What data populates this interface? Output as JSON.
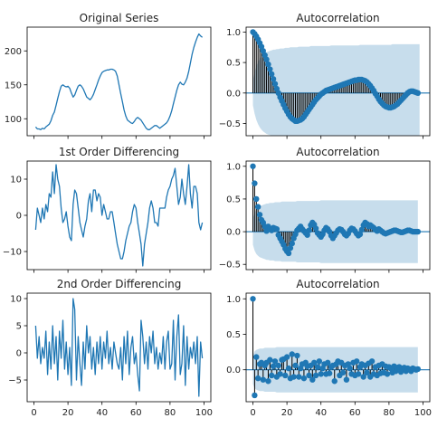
{
  "chart_data": [
    {
      "type": "line",
      "title": "Original Series",
      "xlim": [
        -4,
        104
      ],
      "ylim": [
        75,
        235
      ],
      "xticks": [
        0,
        20,
        40,
        60,
        80,
        100
      ],
      "yticks": [
        100,
        150,
        200
      ],
      "show_x_tick_labels": false,
      "color": "#1f77b4",
      "y": [
        88,
        85,
        85,
        84,
        86,
        85,
        88,
        90,
        92,
        97,
        105,
        110,
        120,
        130,
        140,
        148,
        150,
        148,
        147,
        148,
        145,
        138,
        132,
        135,
        142,
        148,
        150,
        148,
        144,
        138,
        132,
        130,
        128,
        131,
        136,
        143,
        150,
        157,
        163,
        168,
        170,
        171,
        172,
        172,
        173,
        173,
        172,
        170,
        163,
        150,
        137,
        125,
        113,
        104,
        98,
        96,
        94,
        93,
        96,
        100,
        102,
        100,
        98,
        94,
        90,
        86,
        84,
        84,
        86,
        88,
        90,
        90,
        88,
        86,
        88,
        90,
        92,
        94,
        98,
        104,
        112,
        122,
        132,
        142,
        150,
        154,
        151,
        150,
        154,
        160,
        170,
        182,
        195,
        205,
        213,
        220,
        225,
        222,
        220
      ]
    },
    {
      "type": "acf",
      "title": "Autocorrelation",
      "xlim": [
        -4,
        104
      ],
      "ylim": [
        -0.7,
        1.08
      ],
      "xticks": [
        0,
        20,
        40,
        60,
        80,
        100
      ],
      "yticks": [
        -0.5,
        0.0,
        0.5,
        1.0
      ],
      "ytick_labels": [
        "−0.5",
        "0.0",
        "0.5",
        "1.0"
      ],
      "show_x_tick_labels": false,
      "confidence_band": [
        0.2,
        0.34,
        0.44,
        0.51,
        0.56,
        0.6,
        0.63,
        0.65,
        0.67,
        0.68,
        0.69,
        0.7,
        0.71,
        0.71,
        0.72,
        0.72,
        0.73,
        0.73,
        0.73,
        0.74,
        0.74,
        0.74,
        0.75,
        0.75,
        0.75,
        0.75,
        0.75,
        0.76,
        0.76,
        0.76,
        0.76,
        0.76,
        0.76,
        0.76,
        0.77,
        0.77,
        0.77,
        0.77,
        0.77,
        0.77,
        0.77,
        0.77,
        0.77,
        0.77,
        0.77,
        0.77,
        0.78,
        0.78,
        0.78,
        0.78,
        0.78,
        0.78,
        0.78,
        0.78,
        0.78,
        0.78,
        0.78,
        0.78,
        0.78,
        0.78,
        0.78,
        0.78,
        0.78,
        0.79,
        0.79,
        0.79,
        0.79,
        0.79,
        0.79,
        0.79,
        0.79,
        0.79,
        0.79,
        0.79,
        0.79,
        0.79,
        0.79,
        0.79,
        0.79,
        0.79,
        0.79,
        0.79,
        0.8,
        0.8,
        0.8,
        0.8,
        0.8,
        0.8,
        0.8,
        0.8,
        0.8,
        0.8,
        0.8,
        0.8,
        0.8,
        0.8,
        0.8,
        0.8,
        0.8
      ],
      "values": [
        1.0,
        0.97,
        0.93,
        0.88,
        0.82,
        0.76,
        0.69,
        0.62,
        0.55,
        0.47,
        0.39,
        0.31,
        0.23,
        0.15,
        0.07,
        0.0,
        -0.07,
        -0.13,
        -0.19,
        -0.25,
        -0.3,
        -0.35,
        -0.39,
        -0.42,
        -0.44,
        -0.46,
        -0.46,
        -0.45,
        -0.44,
        -0.42,
        -0.39,
        -0.35,
        -0.31,
        -0.27,
        -0.23,
        -0.19,
        -0.15,
        -0.11,
        -0.08,
        -0.05,
        -0.02,
        0.0,
        0.02,
        0.04,
        0.05,
        0.06,
        0.07,
        0.08,
        0.09,
        0.1,
        0.11,
        0.12,
        0.13,
        0.14,
        0.15,
        0.16,
        0.17,
        0.18,
        0.19,
        0.2,
        0.21,
        0.21,
        0.22,
        0.22,
        0.22,
        0.21,
        0.2,
        0.18,
        0.15,
        0.12,
        0.08,
        0.04,
        -0.01,
        -0.05,
        -0.1,
        -0.14,
        -0.17,
        -0.2,
        -0.22,
        -0.23,
        -0.24,
        -0.24,
        -0.23,
        -0.22,
        -0.2,
        -0.18,
        -0.15,
        -0.12,
        -0.09,
        -0.06,
        -0.03,
        0.0,
        0.02,
        0.03,
        0.03,
        0.02,
        0.01,
        0.0
      ]
    },
    {
      "type": "line",
      "title": "1st Order Differencing",
      "xlim": [
        -4,
        104
      ],
      "ylim": [
        -15,
        15
      ],
      "xticks": [
        0,
        20,
        40,
        60,
        80,
        100
      ],
      "yticks": [
        -10,
        0,
        10
      ],
      "ytick_labels": [
        "−10",
        "0",
        "10"
      ],
      "show_x_tick_labels": false,
      "color": "#1f77b4",
      "y": [
        -4,
        2,
        0,
        -2,
        2,
        -1,
        3,
        1,
        6,
        5,
        12,
        6,
        14,
        10,
        8,
        2,
        -2,
        -1,
        1,
        -3,
        -6,
        -7,
        3,
        7,
        6,
        2,
        -2,
        -4,
        -6,
        -3,
        -1,
        4,
        6,
        1,
        7,
        7,
        4,
        6,
        5,
        0,
        3,
        1,
        -1,
        -1,
        1,
        1,
        -2,
        -5,
        -8,
        -10,
        -12,
        -12,
        -10,
        -7,
        -5,
        -3,
        -2,
        1,
        3,
        2,
        -2,
        -5,
        -8,
        -14,
        -8,
        -5,
        -2,
        2,
        4,
        2,
        -2,
        -2,
        -3,
        2,
        2,
        2,
        2,
        5,
        7,
        8,
        10,
        11,
        13,
        8,
        3,
        5,
        10,
        6,
        3,
        8,
        14,
        6,
        2,
        8,
        8,
        6,
        -2,
        -4,
        -2
      ]
    },
    {
      "type": "acf",
      "title": "Autocorrelation",
      "xlim": [
        -4,
        104
      ],
      "ylim": [
        -0.58,
        1.08
      ],
      "xticks": [
        0,
        20,
        40,
        60,
        80,
        100
      ],
      "yticks": [
        -0.5,
        0.0,
        0.5,
        1.0
      ],
      "ytick_labels": [
        "−0.5",
        "0.0",
        "0.5",
        "1.0"
      ],
      "show_x_tick_labels": false,
      "confidence_band": [
        0.2,
        0.29,
        0.34,
        0.37,
        0.39,
        0.4,
        0.41,
        0.42,
        0.43,
        0.43,
        0.44,
        0.44,
        0.44,
        0.45,
        0.45,
        0.45,
        0.45,
        0.46,
        0.46,
        0.46,
        0.46,
        0.46,
        0.46,
        0.46,
        0.46,
        0.46,
        0.47,
        0.47,
        0.47,
        0.47,
        0.47,
        0.47,
        0.47,
        0.47,
        0.47,
        0.47,
        0.47,
        0.47,
        0.47,
        0.47,
        0.48,
        0.48,
        0.48,
        0.48,
        0.48,
        0.48,
        0.48,
        0.48,
        0.48,
        0.48,
        0.48,
        0.48,
        0.48,
        0.48,
        0.48,
        0.48,
        0.48,
        0.48,
        0.48,
        0.48,
        0.48,
        0.48,
        0.48,
        0.48,
        0.48,
        0.48,
        0.48,
        0.48,
        0.48,
        0.48,
        0.48,
        0.48,
        0.48,
        0.48,
        0.48,
        0.48,
        0.48,
        0.48,
        0.48,
        0.48,
        0.48,
        0.48,
        0.48,
        0.48,
        0.48,
        0.48,
        0.48,
        0.48,
        0.48,
        0.48,
        0.48,
        0.48,
        0.48,
        0.48,
        0.48,
        0.48,
        0.48,
        0.48
      ],
      "values": [
        1.0,
        0.74,
        0.5,
        0.38,
        0.26,
        0.18,
        0.14,
        0.08,
        0.01,
        0.08,
        0.04,
        0.02,
        0.06,
        0.05,
        0.04,
        -0.05,
        -0.1,
        -0.15,
        -0.2,
        -0.26,
        -0.3,
        -0.33,
        -0.25,
        -0.18,
        -0.1,
        -0.04,
        0.02,
        0.05,
        0.08,
        0.04,
        0.01,
        -0.02,
        -0.05,
        0.02,
        0.1,
        0.14,
        0.11,
        0.05,
        -0.02,
        -0.05,
        -0.08,
        -0.04,
        0.02,
        0.06,
        0.04,
        0.0,
        -0.06,
        -0.1,
        -0.06,
        -0.02,
        0.02,
        0.04,
        0.03,
        0.0,
        -0.04,
        -0.06,
        -0.03,
        0.02,
        0.05,
        0.04,
        0.01,
        -0.03,
        -0.06,
        -0.04,
        0.03,
        0.1,
        0.14,
        0.12,
        0.08,
        0.1,
        0.08,
        0.06,
        0.03,
        0.01,
        0.04,
        0.02,
        0.0,
        -0.02,
        -0.03,
        -0.02,
        -0.01,
        0.0,
        0.01,
        0.02,
        0.02,
        0.01,
        0.0,
        -0.01,
        -0.01,
        0.0,
        0.01,
        0.02,
        0.02,
        0.01,
        0.0,
        0.0,
        0.0,
        0.0
      ]
    },
    {
      "type": "line",
      "title": "2nd Order Differencing",
      "xlim": [
        -4,
        104
      ],
      "ylim": [
        -9,
        11
      ],
      "xticks": [
        0,
        20,
        40,
        60,
        80,
        100
      ],
      "yticks": [
        -5,
        0,
        5,
        10
      ],
      "ytick_labels": [
        "−5",
        "0",
        "5",
        "10"
      ],
      "show_x_tick_labels": true,
      "xtick_labels": [
        "0",
        "20",
        "40",
        "60",
        "80",
        "100"
      ],
      "color": "#1f77b4",
      "y": [
        5,
        -1,
        3,
        -2,
        1,
        -1,
        4,
        -4,
        2,
        -3,
        5,
        -2,
        3,
        -5,
        4,
        -1,
        6,
        -3,
        2,
        -4,
        1,
        -6,
        10,
        8,
        -5,
        3,
        -2,
        -6,
        2,
        -3,
        5,
        0,
        3,
        -3,
        1,
        -4,
        2,
        -2,
        3,
        -3,
        2,
        -1,
        4,
        -2,
        1,
        -3,
        2,
        0,
        -2,
        -3,
        1,
        -5,
        3,
        -2,
        4,
        -4,
        1,
        3,
        -2,
        0,
        -4,
        -7,
        6,
        3,
        -2,
        2,
        -3,
        3,
        0,
        4,
        -2,
        1,
        -3,
        0,
        -2,
        3,
        -3,
        2,
        4,
        -3,
        -2,
        6,
        -5,
        3,
        7,
        -4,
        -2,
        5,
        -6,
        3,
        -3,
        1,
        -1,
        2,
        -2,
        3,
        -8,
        2,
        -1
      ]
    },
    {
      "type": "acf",
      "title": "Autocorrelation",
      "xlim": [
        -4,
        104
      ],
      "ylim": [
        -0.45,
        1.08
      ],
      "xticks": [
        0,
        20,
        40,
        60,
        80,
        100
      ],
      "yticks": [
        0.0,
        0.5,
        1.0
      ],
      "ytick_labels": [
        "0.0",
        "0.5",
        "1.0"
      ],
      "show_x_tick_labels": true,
      "xtick_labels": [
        "0",
        "20",
        "40",
        "60",
        "80",
        "100"
      ],
      "confidence_band": [
        0.2,
        0.26,
        0.28,
        0.29,
        0.3,
        0.3,
        0.3,
        0.31,
        0.31,
        0.31,
        0.31,
        0.31,
        0.31,
        0.31,
        0.32,
        0.32,
        0.32,
        0.32,
        0.32,
        0.32,
        0.32,
        0.32,
        0.32,
        0.32,
        0.32,
        0.32,
        0.32,
        0.32,
        0.32,
        0.32,
        0.32,
        0.32,
        0.32,
        0.32,
        0.32,
        0.32,
        0.32,
        0.32,
        0.32,
        0.32,
        0.32,
        0.32,
        0.32,
        0.32,
        0.32,
        0.32,
        0.32,
        0.32,
        0.32,
        0.32,
        0.32,
        0.32,
        0.32,
        0.32,
        0.32,
        0.32,
        0.32,
        0.32,
        0.32,
        0.32,
        0.32,
        0.32,
        0.32,
        0.32,
        0.32,
        0.32,
        0.32,
        0.32,
        0.32,
        0.32,
        0.32,
        0.32,
        0.32,
        0.32,
        0.32,
        0.32,
        0.32,
        0.32,
        0.32,
        0.32,
        0.32,
        0.32,
        0.32,
        0.32,
        0.32,
        0.32,
        0.32,
        0.32,
        0.32,
        0.32,
        0.32,
        0.32,
        0.32,
        0.32,
        0.32,
        0.32,
        0.32,
        0.32
      ],
      "values": [
        1.0,
        -0.36,
        0.18,
        -0.12,
        0.08,
        0.1,
        -0.14,
        0.06,
        0.1,
        -0.16,
        0.14,
        -0.08,
        0.05,
        0.12,
        -0.1,
        0.06,
        -0.06,
        0.14,
        0.15,
        -0.08,
        0.18,
        0.02,
        -0.12,
        0.22,
        -0.1,
        0.06,
        0.2,
        -0.1,
        0.02,
        0.08,
        -0.12,
        0.1,
        0.05,
        -0.08,
        0.06,
        -0.14,
        0.1,
        -0.08,
        0.04,
        0.12,
        -0.06,
        0.02,
        0.08,
        -0.06,
        0.1,
        -0.05,
        0.04,
        0.06,
        -0.16,
        0.08,
        0.12,
        -0.08,
        0.1,
        -0.04,
        0.06,
        -0.14,
        0.08,
        0.02,
        -0.06,
        0.1,
        -0.08,
        0.12,
        -0.06,
        0.04,
        0.08,
        -0.1,
        0.06,
        -0.04,
        0.09,
        -0.1,
        0.12,
        -0.06,
        0.04,
        -0.08,
        0.06,
        -0.05,
        0.08,
        -0.04,
        0.05,
        -0.06,
        0.04,
        0.02,
        -0.04,
        0.05,
        -0.02,
        0.03,
        0.04,
        -0.03,
        0.02,
        0.03,
        -0.02,
        0.02,
        0.01,
        -0.02,
        0.02,
        0.01,
        0.0,
        0.01
      ]
    }
  ]
}
